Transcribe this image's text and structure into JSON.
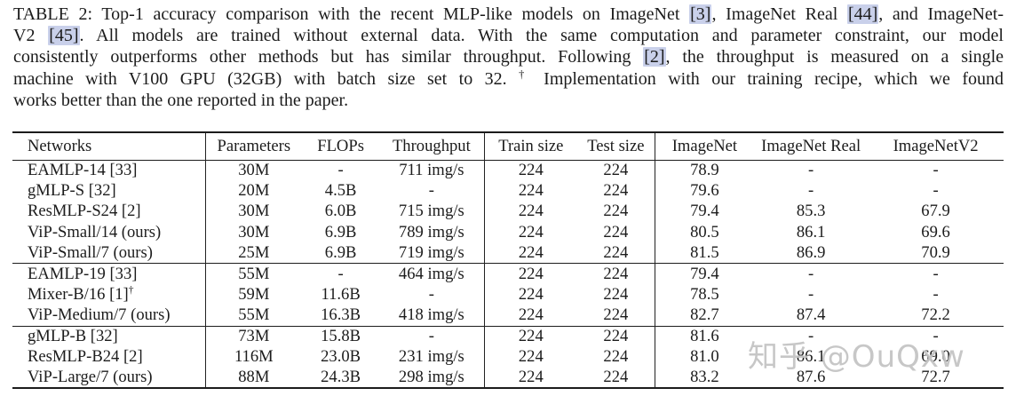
{
  "caption": {
    "lines": [
      {
        "segments": [
          {
            "text": "TABLE 2: Top-1 accuracy comparison with the recent MLP-like models on ImageNet "
          },
          {
            "cite": "[3]"
          },
          {
            "text": ", ImageNet Real "
          },
          {
            "cite": "[44]"
          },
          {
            "text": ", and ImageNet-"
          }
        ]
      },
      {
        "segments": [
          {
            "text": "V2 "
          },
          {
            "cite": "[45]"
          },
          {
            "text": ". All models are trained without external data. With the same computation and parameter constraint, our model"
          }
        ]
      },
      {
        "segments": [
          {
            "text": "consistently outperforms other methods but has similar throughput. Following "
          },
          {
            "cite": "[2]"
          },
          {
            "text": ", the throughput is measured on a single"
          }
        ]
      },
      {
        "segments": [
          {
            "text": "machine with V100 GPU (32GB) with batch size set to 32. "
          },
          {
            "sup": "†"
          },
          {
            "text": " Implementation with our training recipe, which we found"
          }
        ]
      },
      {
        "segments": [
          {
            "text": "works better than the one reported in the paper."
          }
        ]
      }
    ]
  },
  "table": {
    "headers": [
      "Networks",
      "Parameters",
      "FLOPs",
      "Throughput",
      "Train size",
      "Test size",
      "ImageNet",
      "ImageNet Real",
      "ImageNetV2"
    ],
    "col_widths_pct": [
      19.45,
      9.77,
      7.8,
      10.57,
      9.41,
      7.8,
      10.04,
      11.47,
      13.69
    ],
    "vline_after_cols": [
      0,
      3,
      5
    ],
    "groups": [
      {
        "rows": [
          [
            "EAMLP-14 [33]",
            "30M",
            "-",
            "711 img/s",
            "224",
            "224",
            "78.9",
            "-",
            "-"
          ],
          [
            "gMLP-S [32]",
            "20M",
            "4.5B",
            "-",
            "224",
            "224",
            "79.6",
            "-",
            "-"
          ],
          [
            "ResMLP-S24 [2]",
            "30M",
            "6.0B",
            "715 img/s",
            "224",
            "224",
            "79.4",
            "85.3",
            "67.9"
          ],
          [
            "ViP-Small/14 (ours)",
            "30M",
            "6.9B",
            "789 img/s",
            "224",
            "224",
            "80.5",
            "86.1",
            "69.6"
          ],
          [
            "ViP-Small/7 (ours)",
            "25M",
            "6.9B",
            "719 img/s",
            "224",
            "224",
            "81.5",
            "86.9",
            "70.9"
          ]
        ]
      },
      {
        "rows": [
          [
            "EAMLP-19 [33]",
            "55M",
            "-",
            "464 img/s",
            "224",
            "224",
            "79.4",
            "-",
            "-"
          ],
          [
            "Mixer-B/16 [1]†",
            "59M",
            "11.6B",
            "-",
            "224",
            "224",
            "78.5",
            "-",
            "-"
          ],
          [
            "ViP-Medium/7 (ours)",
            "55M",
            "16.3B",
            "418 img/s",
            "224",
            "224",
            "82.7",
            "87.4",
            "72.2"
          ]
        ]
      },
      {
        "rows": [
          [
            "gMLP-B [32]",
            "73M",
            "15.8B",
            "-",
            "224",
            "224",
            "81.6",
            "-",
            "-"
          ],
          [
            "ResMLP-B24 [2]",
            "116M",
            "23.0B",
            "231 img/s",
            "224",
            "224",
            "81.0",
            "86.1",
            "69.0"
          ],
          [
            "ViP-Large/7 (ours)",
            "88M",
            "24.3B",
            "298 img/s",
            "224",
            "224",
            "83.2",
            "87.6",
            "72.7"
          ]
        ]
      }
    ]
  },
  "watermark": {
    "text": "知乎 @OuQxw"
  },
  "colors": {
    "text": "#1c1c1c",
    "cite_highlight": "#c9d0ea",
    "rule": "#1c1c1c",
    "watermark": "#c3c3c3"
  }
}
